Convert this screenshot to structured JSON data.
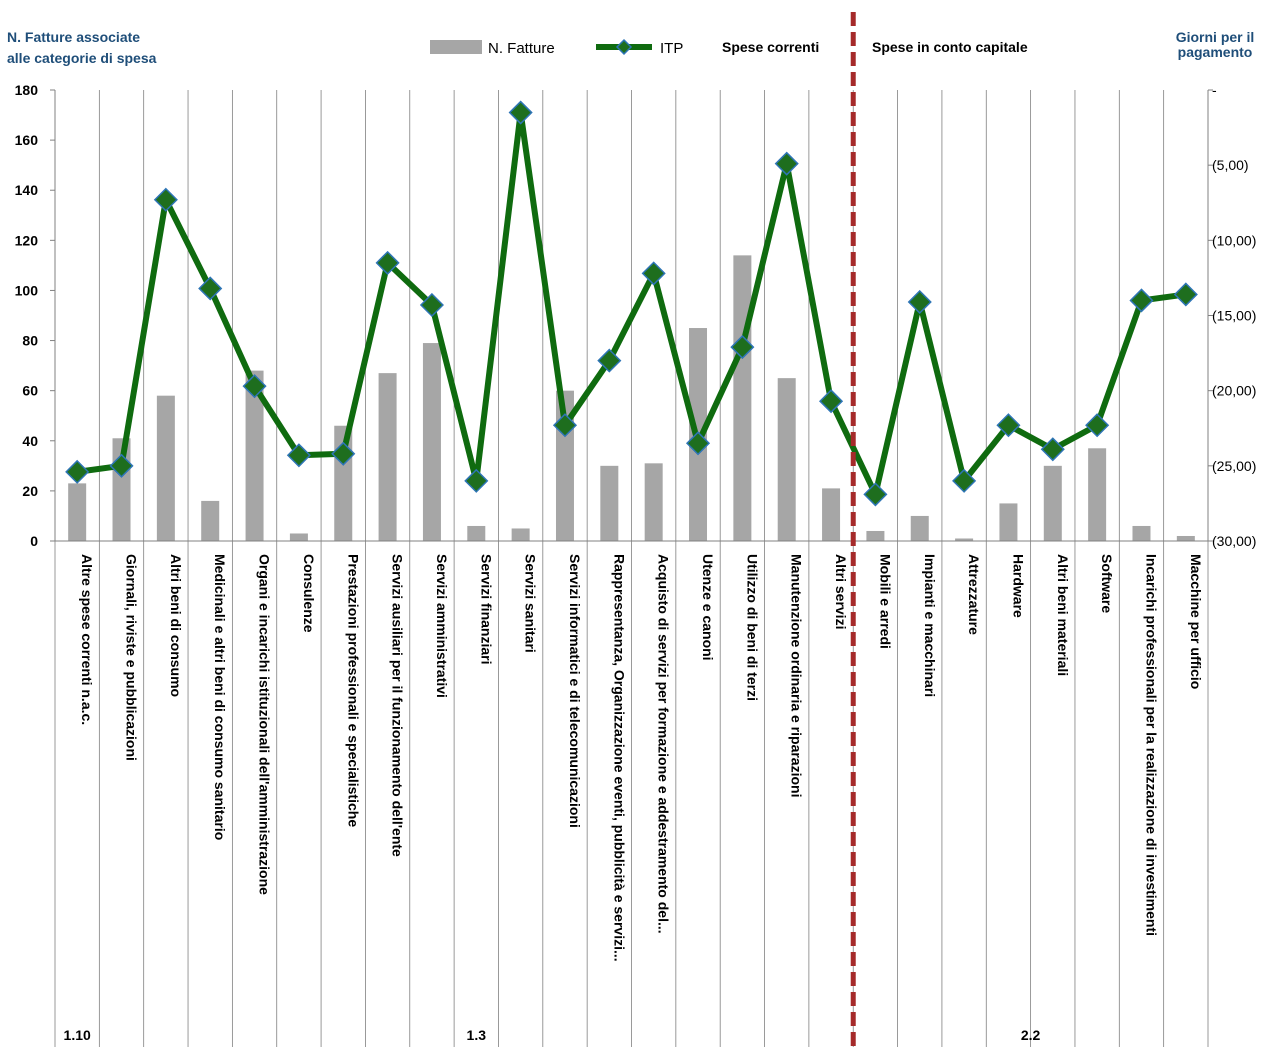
{
  "colors": {
    "bars": "#a6a6a6",
    "line": "#0f6b0f",
    "marker_fill": "#1e6e1e",
    "marker_stroke": "#2e75b6",
    "divider": "#a52a2a",
    "title_blue": "#1f4e79",
    "text": "#000000",
    "grid": "#808080"
  },
  "chart_data": {
    "type": "bar+line",
    "left_axis": {
      "title_line1": "N. Fatture associate",
      "title_line2": "alle categorie di spesa",
      "ylim": [
        0,
        180
      ],
      "ticks": [
        0,
        20,
        40,
        60,
        80,
        100,
        120,
        140,
        160,
        180
      ],
      "tick_labels": [
        "0",
        "20",
        "40",
        "60",
        "80",
        "100",
        "120",
        "140",
        "160",
        "180"
      ]
    },
    "right_axis": {
      "title_line1": "Giorni per il",
      "title_line2": "pagamento",
      "ylim": [
        -30,
        0
      ],
      "ticks": [
        0,
        -5,
        -10,
        -15,
        -20,
        -25,
        -30
      ],
      "tick_labels": [
        "-",
        "(5,00)",
        "(10,00)",
        "(15,00)",
        "(20,00)",
        "(25,00)",
        "(30,00)"
      ]
    },
    "legend": {
      "bars_label": "N. Fatture",
      "line_label": "ITP",
      "section_left": "Spese correnti",
      "section_right": "Spese in conto capitale"
    },
    "categories": [
      "Altre spese correnti n.a.c.",
      "Giornali, riviste e pubblicazioni",
      "Altri beni di consumo",
      "Medicinali e altri beni di consumo sanitario",
      "Organi e incarichi istituzionali dell'amministrazione",
      "Consulenze",
      "Prestazioni professionali e specialistiche",
      "Servizi ausiliari per il funzionamento dell'ente",
      "Servizi amministrativi",
      "Servizi finanziari",
      "Servizi sanitari",
      "Servizi informatici e di telecomunicazioni",
      "Rappresentanza, Organizzazione eventi, pubblicità e servizi...",
      "Acquisto di servizi per formazione e addestramento del...",
      "Utenze e canoni",
      "Utilizzo di beni di terzi",
      "Manutenzione ordinaria e riparazioni",
      "Altri servizi",
      "Mobili e arredi",
      "Impianti e macchinari",
      "Attrezzature",
      "Hardware",
      "Altri beni materiali",
      "Software",
      "Incarichi professionali per la realizzazione di investimenti",
      "Macchine per ufficio"
    ],
    "series": [
      {
        "name": "N. Fatture",
        "axis": "left",
        "values": [
          23,
          41,
          58,
          16,
          68,
          3,
          46,
          67,
          79,
          6,
          5,
          60,
          30,
          31,
          85,
          114,
          65,
          21,
          4,
          10,
          1,
          15,
          30,
          37,
          6,
          2
        ]
      },
      {
        "name": "ITP",
        "axis": "right",
        "values": [
          -25.4,
          -25.0,
          -7.3,
          -13.2,
          -19.7,
          -24.3,
          -24.2,
          -11.5,
          -14.3,
          -26.0,
          -1.5,
          -22.3,
          -18.0,
          -12.2,
          -23.5,
          -17.1,
          -4.9,
          -20.7,
          -26.9,
          -14.1,
          -26.0,
          -22.3,
          -23.9,
          -22.3,
          -14.0,
          -13.6
        ]
      }
    ],
    "groups": [
      {
        "label": "1.10",
        "from": 0,
        "to": 0
      },
      {
        "label": "1.3",
        "from": 1,
        "to": 17
      },
      {
        "label": "2.2",
        "from": 18,
        "to": 25
      }
    ],
    "divider_after_index": 17
  }
}
